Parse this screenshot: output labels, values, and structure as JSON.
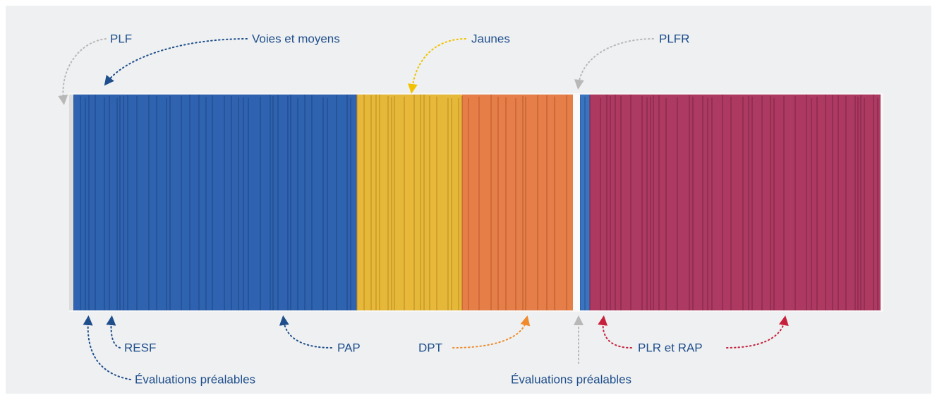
{
  "labels": {
    "plf": "PLF",
    "voies_et_moyens": "Voies et moyens",
    "jaunes": "Jaunes",
    "plfr": "PLFR",
    "resf": "RESF",
    "pap": "PAP",
    "dpt": "DPT",
    "plr_et_rap": "PLR et RAP",
    "evaluations_prealables_plf": "Évaluations préalables",
    "evaluations_prealables_plfr": "Évaluations préalables"
  }
}
